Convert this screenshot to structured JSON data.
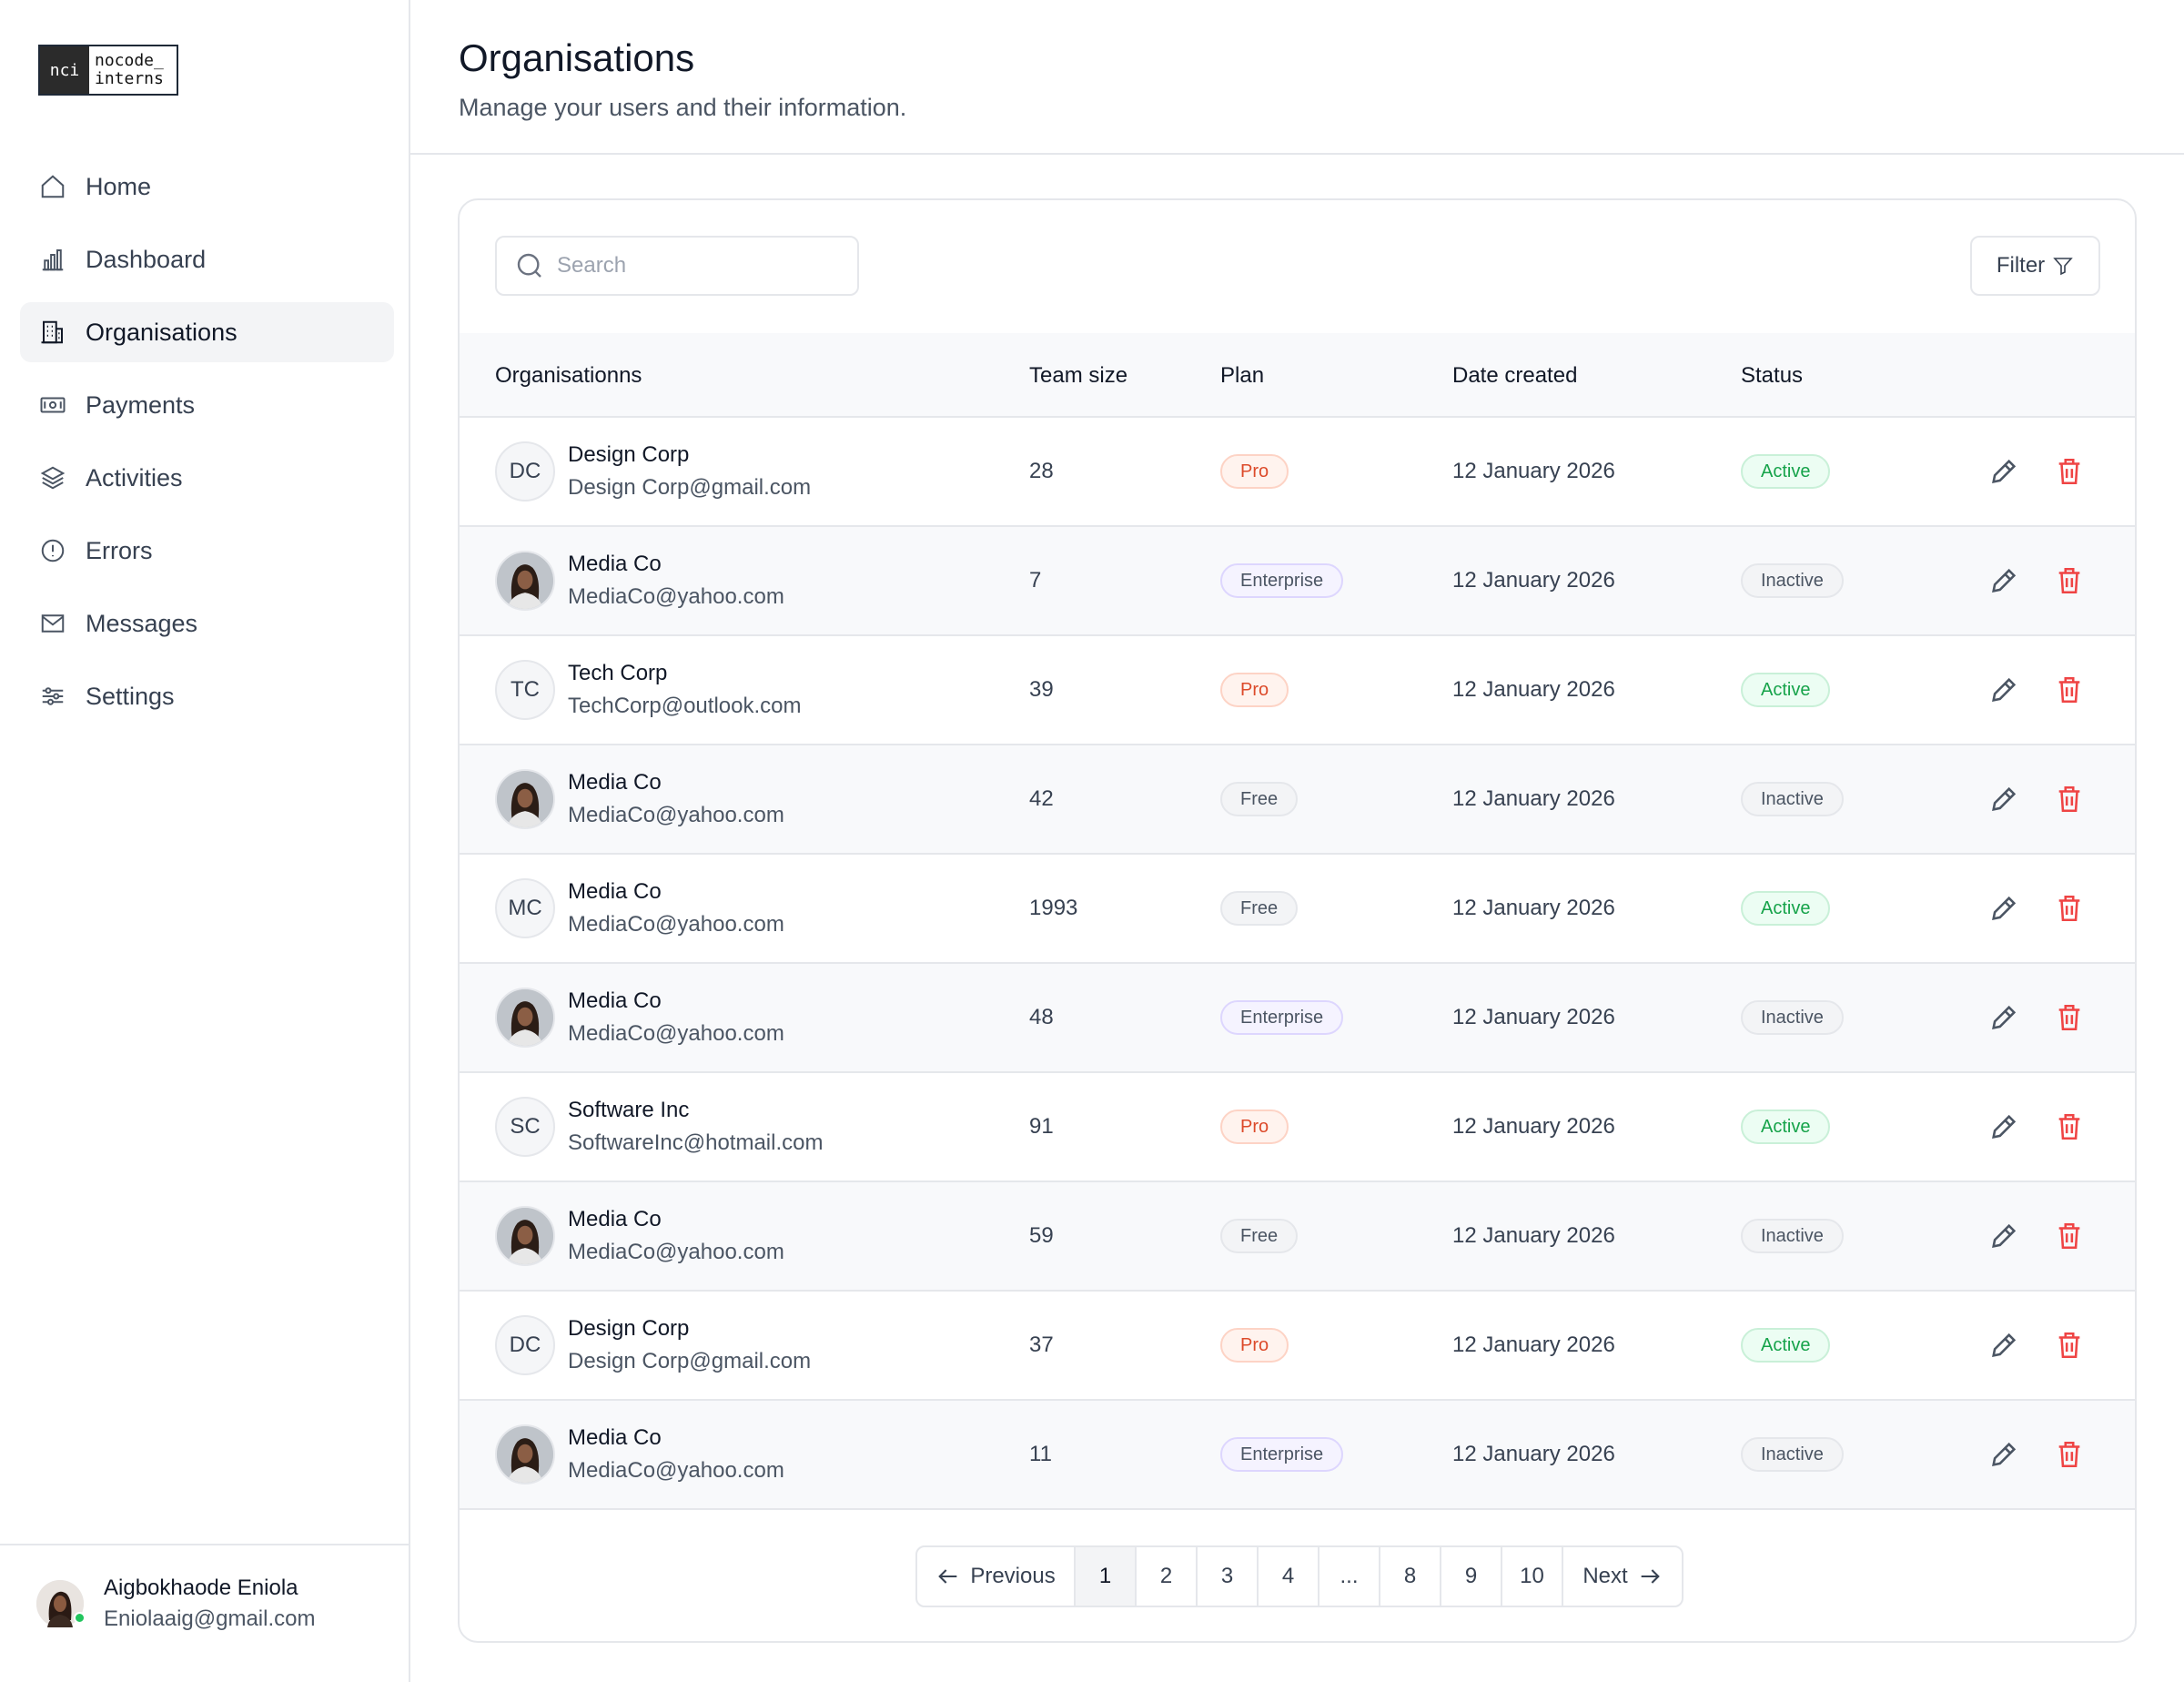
{
  "logo": {
    "mark": "nci",
    "line1": "nocode_",
    "line2": "interns"
  },
  "sidebar": {
    "items": [
      {
        "label": "Home",
        "icon": "home-icon",
        "active": false
      },
      {
        "label": "Dashboard",
        "icon": "bar-chart-icon",
        "active": false
      },
      {
        "label": "Organisations",
        "icon": "building-icon",
        "active": true
      },
      {
        "label": "Payments",
        "icon": "banknote-icon",
        "active": false
      },
      {
        "label": "Activities",
        "icon": "layers-icon",
        "active": false
      },
      {
        "label": "Errors",
        "icon": "alert-circle-icon",
        "active": false
      },
      {
        "label": "Messages",
        "icon": "mail-icon",
        "active": false
      },
      {
        "label": "Settings",
        "icon": "sliders-icon",
        "active": false
      }
    ]
  },
  "profile": {
    "name": "Aigbokhaode Eniola",
    "email": "Eniolaaig@gmail.com",
    "status_color": "#22c55e"
  },
  "header": {
    "title": "Organisations",
    "subtitle": "Manage your users and their information."
  },
  "toolbar": {
    "search_placeholder": "Search",
    "filter_label": "Filter"
  },
  "table": {
    "columns": [
      "Organisationns",
      "Team size",
      "Plan",
      "Date created",
      "Status"
    ],
    "rows": [
      {
        "initials": "DC",
        "photo": false,
        "name": "Design Corp",
        "email": "Design Corp@gmail.com",
        "team": "28",
        "plan": "Pro",
        "date": "12 January 2026",
        "status": "Active"
      },
      {
        "initials": "",
        "photo": true,
        "name": "Media Co",
        "email": "MediaCo@yahoo.com",
        "team": "7",
        "plan": "Enterprise",
        "date": "12 January 2026",
        "status": "Inactive"
      },
      {
        "initials": "TC",
        "photo": false,
        "name": "Tech Corp",
        "email": "TechCorp@outlook.com",
        "team": "39",
        "plan": "Pro",
        "date": "12 January 2026",
        "status": "Active"
      },
      {
        "initials": "",
        "photo": true,
        "name": "Media Co",
        "email": "MediaCo@yahoo.com",
        "team": "42",
        "plan": "Free",
        "date": "12 January 2026",
        "status": "Inactive"
      },
      {
        "initials": "MC",
        "photo": false,
        "name": "Media Co",
        "email": "MediaCo@yahoo.com",
        "team": "1993",
        "plan": "Free",
        "date": "12 January 2026",
        "status": "Active"
      },
      {
        "initials": "",
        "photo": true,
        "name": "Media Co",
        "email": "MediaCo@yahoo.com",
        "team": "48",
        "plan": "Enterprise",
        "date": "12 January 2026",
        "status": "Inactive"
      },
      {
        "initials": "SC",
        "photo": false,
        "name": "Software Inc",
        "email": "SoftwareInc@hotmail.com",
        "team": "91",
        "plan": "Pro",
        "date": "12 January 2026",
        "status": "Active"
      },
      {
        "initials": "",
        "photo": true,
        "name": "Media Co",
        "email": "MediaCo@yahoo.com",
        "team": "59",
        "plan": "Free",
        "date": "12 January 2026",
        "status": "Inactive"
      },
      {
        "initials": "DC",
        "photo": false,
        "name": "Design Corp",
        "email": "Design Corp@gmail.com",
        "team": "37",
        "plan": "Pro",
        "date": "12 January 2026",
        "status": "Active"
      },
      {
        "initials": "",
        "photo": true,
        "name": "Media Co",
        "email": "MediaCo@yahoo.com",
        "team": "11",
        "plan": "Enterprise",
        "date": "12 January 2026",
        "status": "Inactive"
      }
    ]
  },
  "pagination": {
    "previous_label": "Previous",
    "next_label": "Next",
    "pages": [
      "1",
      "2",
      "3",
      "4",
      "...",
      "8",
      "9",
      "10"
    ],
    "current": "1"
  }
}
